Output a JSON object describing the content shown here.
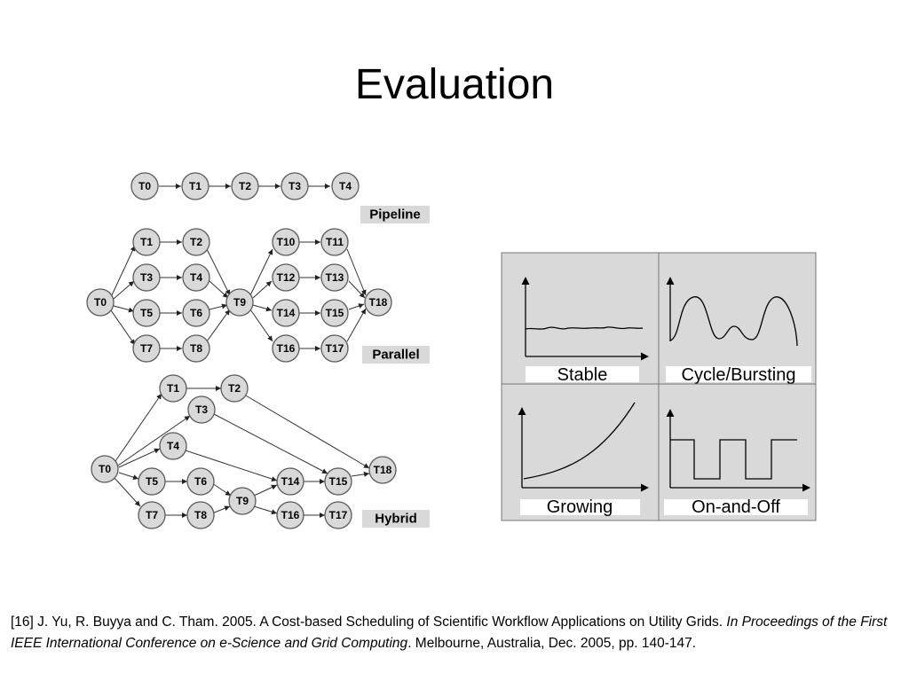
{
  "slide": {
    "title": "Evaluation"
  },
  "workflows": {
    "pipeline": {
      "label": "Pipeline",
      "nodes": [
        "T0",
        "T1",
        "T2",
        "T3",
        "T4"
      ]
    },
    "parallel": {
      "label": "Parallel",
      "nodes": [
        "T0",
        "T1",
        "T2",
        "T3",
        "T4",
        "T5",
        "T6",
        "T7",
        "T8",
        "T9",
        "T10",
        "T11",
        "T12",
        "T13",
        "T14",
        "T15",
        "T16",
        "T17",
        "T18"
      ]
    },
    "hybrid": {
      "label": "Hybrid",
      "nodes": [
        "T0",
        "T1",
        "T2",
        "T3",
        "T4",
        "T5",
        "T6",
        "T7",
        "T8",
        "T9",
        "T14",
        "T15",
        "T16",
        "T17",
        "T18"
      ]
    }
  },
  "patterns": {
    "stable": "Stable",
    "cycle": "Cycle/Bursting",
    "growing": "Growing",
    "onoff": "On-and-Off"
  },
  "citation": {
    "prefix": "[16] J. Yu, R. Buyya and C. Tham. 2005. A Cost-based Scheduling of Scientific Workflow Applications on Utility Grids. ",
    "venue": "In Proceedings of the First IEEE International Conference on e-Science and Grid Computing",
    "suffix": ". Melbourne, Australia, Dec. 2005, pp. 140-147."
  }
}
